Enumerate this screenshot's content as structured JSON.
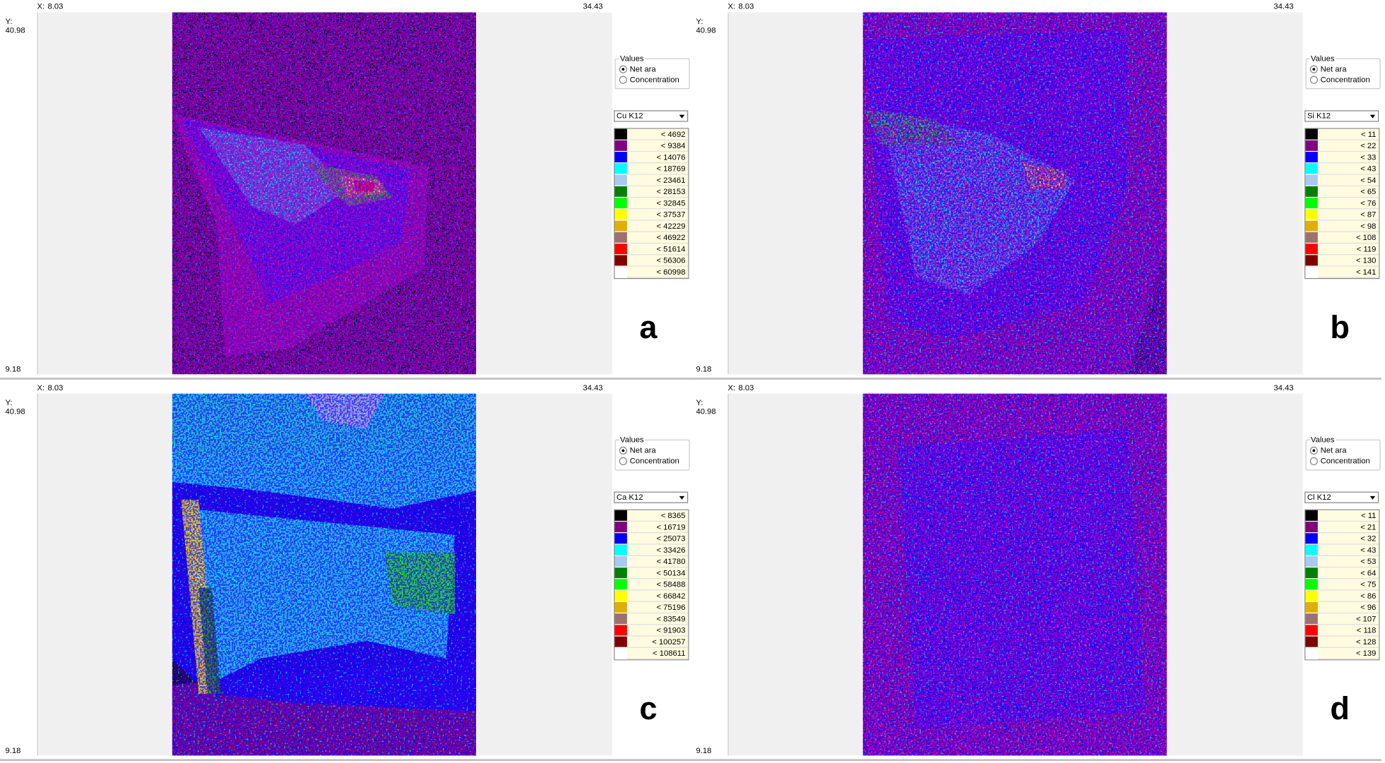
{
  "legend_colors": [
    "#000000",
    "#800080",
    "#0000ff",
    "#00ffff",
    "#a6caf0",
    "#008000",
    "#00ff00",
    "#ffff00",
    "#e0b000",
    "#a07070",
    "#ff0000",
    "#800000",
    "#ffffff"
  ],
  "panels": [
    {
      "x_label": "X:",
      "x_min": "8.03",
      "x_max": "34.43",
      "y_label": "Y:",
      "y_max": "40.98",
      "y_min": "9.18",
      "values_group": {
        "title": "Values",
        "options": [
          "Net ara",
          "Concentration"
        ]
      },
      "element": "Cu K12",
      "legend_labels": [
        "< 4692",
        "< 9384",
        "< 14076",
        "< 18769",
        "< 23461",
        "< 28153",
        "< 32845",
        "< 37537",
        "< 42229",
        "< 46922",
        "< 51614",
        "< 56306",
        "< 60998"
      ],
      "label": "a"
    },
    {
      "x_label": "X:",
      "x_min": "8.03",
      "x_max": "34.43",
      "y_label": "Y:",
      "y_max": "40.98",
      "y_min": "9.18",
      "values_group": {
        "title": "Values",
        "options": [
          "Net ara",
          "Concentration"
        ]
      },
      "element": "Si K12",
      "legend_labels": [
        "< 11",
        "< 22",
        "< 33",
        "< 43",
        "< 54",
        "< 65",
        "< 76",
        "< 87",
        "< 98",
        "< 108",
        "< 119",
        "< 130",
        "< 141"
      ],
      "label": "b"
    },
    {
      "x_label": "X:",
      "x_min": "8.03",
      "x_max": "34.43",
      "y_label": "Y:",
      "y_max": "40.98",
      "y_min": "9.18",
      "values_group": {
        "title": "Values",
        "options": [
          "Net ara",
          "Concentration"
        ]
      },
      "element": "Ca K12",
      "legend_labels": [
        "< 8365",
        "< 16719",
        "< 25073",
        "< 33426",
        "< 41780",
        "< 50134",
        "< 58488",
        "< 66842",
        "< 75196",
        "< 83549",
        "< 91903",
        "< 100257",
        "< 108611"
      ],
      "label": "c"
    },
    {
      "x_label": "X:",
      "x_min": "8.03",
      "x_max": "34.43",
      "y_label": "Y:",
      "y_max": "40.98",
      "y_min": "9.18",
      "values_group": {
        "title": "Values",
        "options": [
          "Net ara",
          "Concentration"
        ]
      },
      "element": "Cl K12",
      "legend_labels": [
        "< 11",
        "< 21",
        "< 32",
        "< 43",
        "< 53",
        "< 64",
        "< 75",
        "< 86",
        "< 96",
        "< 107",
        "< 118",
        "< 128",
        "< 139"
      ],
      "label": "d"
    }
  ]
}
